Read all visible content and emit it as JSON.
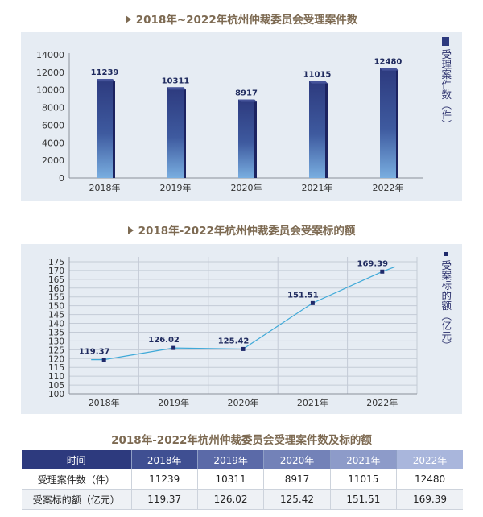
{
  "chart1": {
    "title": "2018年~2022年杭州仲裁委员会受理案件数",
    "legend": "受理案件数（件）",
    "chart_data": {
      "type": "bar",
      "categories": [
        "2018年",
        "2019年",
        "2020年",
        "2021年",
        "2022年"
      ],
      "values": [
        11239,
        10311,
        8917,
        11015,
        12480
      ],
      "ylim": [
        0,
        14000
      ],
      "yticks": [
        0,
        2000,
        4000,
        6000,
        8000,
        10000,
        12000,
        14000
      ],
      "legend_position": "right",
      "grid": false
    }
  },
  "chart2": {
    "title": "2018年-2022年杭州仲裁委员会受案标的额",
    "legend": "受案标的额（亿元）",
    "chart_data": {
      "type": "line",
      "categories": [
        "2018年",
        "2019年",
        "2020年",
        "2021年",
        "2022年"
      ],
      "values": [
        119.37,
        126.02,
        125.42,
        151.51,
        169.39
      ],
      "ylim": [
        100,
        175
      ],
      "yticks": [
        100,
        105,
        110,
        115,
        120,
        125,
        130,
        135,
        140,
        145,
        150,
        155,
        160,
        165,
        170,
        175
      ],
      "legend_position": "right",
      "grid": true
    }
  },
  "table": {
    "title": "2018年-2022年杭州仲裁委员会受理案件数及标的额",
    "headers": [
      "时间",
      "2018年",
      "2019年",
      "2020年",
      "2021年",
      "2022年"
    ],
    "rows": [
      [
        "受理案件数（件）",
        "11239",
        "10311",
        "8917",
        "11015",
        "12480"
      ],
      [
        "受案标的额（亿元）",
        "119.37",
        "126.02",
        "125.42",
        "151.51",
        "169.39"
      ]
    ]
  },
  "colors": {
    "title": "#7d6a52",
    "bar_top": "#2d3a7e",
    "bar_bottom": "#79aee0",
    "line": "#3fa9d8",
    "marker": "#1f2a6b",
    "panel": "#e6ecf3",
    "header_left": "#2d3a7e",
    "header_right": "#a9b6dc"
  }
}
